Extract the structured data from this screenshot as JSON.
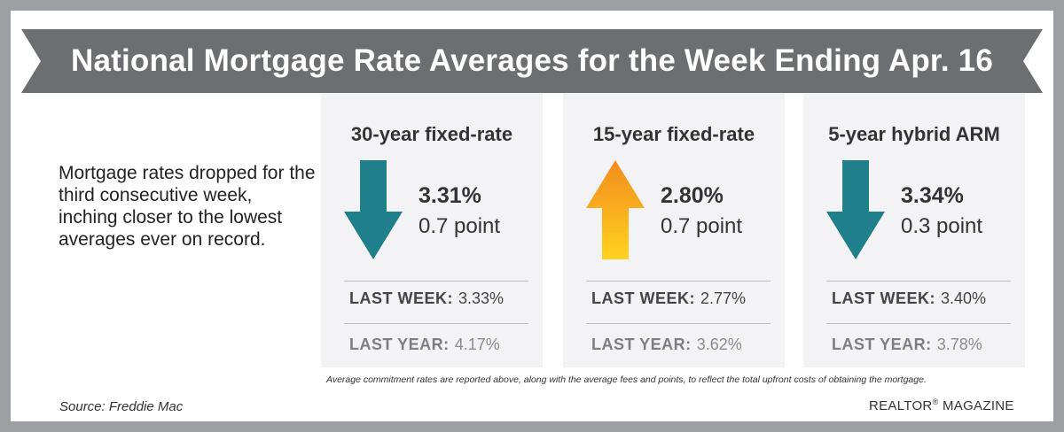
{
  "banner": {
    "title": "National Mortgage Rate Averages for the Week Ending Apr. 16"
  },
  "intro": {
    "text": "Mortgage rates dropped for the third consecutive week, inching closer to the lowest averages ever on record."
  },
  "cards": [
    {
      "title": "30-year fixed-rate",
      "direction": "down",
      "arrow_icon": "arrow-down-icon",
      "rate": "3.31%",
      "change": "0.7 point",
      "last_week_label": "LAST WEEK:",
      "last_week_value": "3.33%",
      "last_year_label": "LAST YEAR:",
      "last_year_value": "4.17%"
    },
    {
      "title": "15-year fixed-rate",
      "direction": "up",
      "arrow_icon": "arrow-up-icon",
      "rate": "2.80%",
      "change": "0.7 point",
      "last_week_label": "LAST WEEK:",
      "last_week_value": "2.77%",
      "last_year_label": "LAST YEAR:",
      "last_year_value": "3.62%"
    },
    {
      "title": "5-year hybrid ARM",
      "direction": "down",
      "arrow_icon": "arrow-down-icon",
      "rate": "3.34%",
      "change": "0.3 point",
      "last_week_label": "LAST WEEK:",
      "last_week_value": "3.40%",
      "last_year_label": "LAST YEAR:",
      "last_year_value": "3.78%"
    }
  ],
  "footnote": "Average commitment rates are reported above, along with the average fees and points, to reflect the total upfront costs of obtaining the mortgage.",
  "source": "Source: Freddie Mac",
  "brand": {
    "name": "REALTOR",
    "mark": "®",
    "suffix": " MAGAZINE"
  },
  "colors": {
    "frame": "#9d9fa2",
    "banner": "#6d6e71",
    "down_arrow": "#1f7f8b",
    "up_arrow_top": "#f28c1e",
    "up_arrow_bottom": "#ffd21f",
    "card_bg": "#f3f3f5"
  }
}
